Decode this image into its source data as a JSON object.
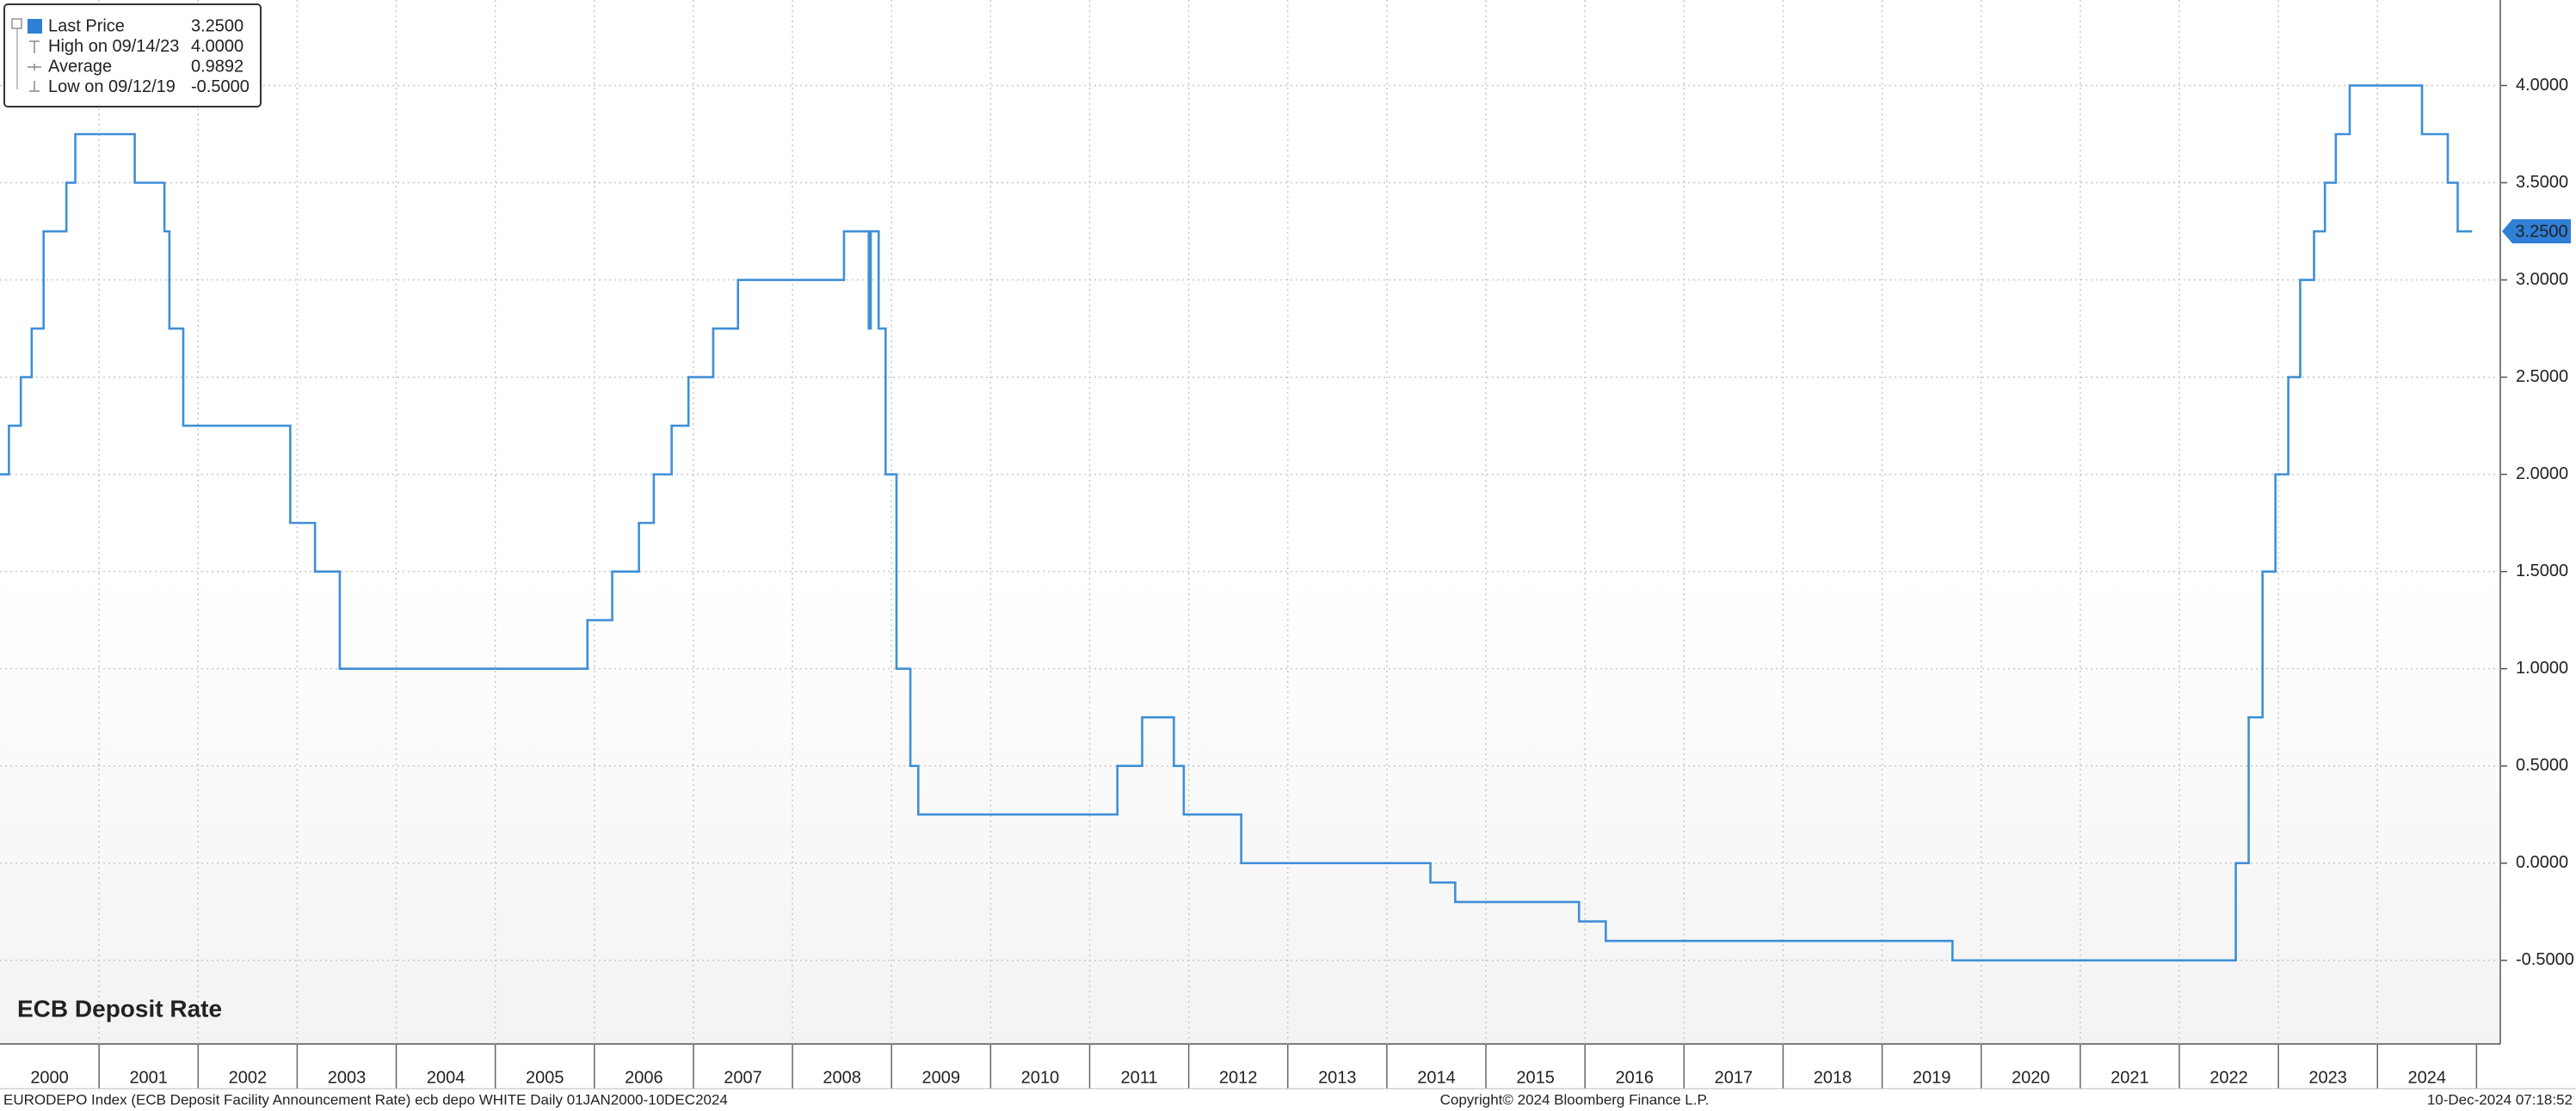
{
  "chart_data": {
    "type": "step-line",
    "title": "ECB Deposit Rate",
    "x": [
      2000.0,
      2000.09,
      2000.21,
      2000.32,
      2000.44,
      2000.67,
      2000.76,
      2001.36,
      2001.66,
      2001.71,
      2001.85,
      2002.93,
      2003.18,
      2003.43,
      2005.93,
      2006.18,
      2006.45,
      2006.6,
      2006.78,
      2006.95,
      2007.2,
      2007.45,
      2008.52,
      2008.77,
      2008.79,
      2008.87,
      2008.94,
      2009.05,
      2009.19,
      2009.27,
      2011.28,
      2011.53,
      2011.85,
      2011.95,
      2012.53,
      2014.44,
      2014.69,
      2015.94,
      2016.21,
      2019.71,
      2022.57,
      2022.7,
      2022.84,
      2022.97,
      2023.1,
      2023.22,
      2023.36,
      2023.47,
      2023.58,
      2023.72,
      2024.45,
      2024.71,
      2024.81,
      2024.94
    ],
    "series": [
      {
        "name": "Last Price",
        "color": "#3f8fd8",
        "values": [
          2.0,
          2.25,
          2.5,
          2.75,
          3.25,
          3.5,
          3.75,
          3.5,
          3.25,
          2.75,
          2.25,
          1.75,
          1.5,
          1.0,
          1.25,
          1.5,
          1.75,
          2.0,
          2.25,
          2.5,
          2.75,
          3.0,
          3.25,
          2.75,
          3.25,
          2.75,
          2.0,
          1.0,
          0.5,
          0.25,
          0.5,
          0.75,
          0.5,
          0.25,
          0.0,
          -0.1,
          -0.2,
          -0.3,
          -0.4,
          -0.5,
          0.0,
          0.75,
          1.5,
          2.0,
          2.5,
          3.0,
          3.25,
          3.5,
          3.75,
          4.0,
          3.75,
          3.5,
          3.25,
          3.25
        ]
      }
    ],
    "last_label": "3.2500",
    "xlim": [
      2000.0,
      2025.24
    ],
    "xticks": [
      2000,
      2001,
      2002,
      2003,
      2004,
      2005,
      2006,
      2007,
      2008,
      2009,
      2010,
      2011,
      2012,
      2013,
      2014,
      2015,
      2016,
      2017,
      2018,
      2019,
      2020,
      2021,
      2022,
      2023,
      2024
    ],
    "ylim": [
      -0.93,
      4.44
    ],
    "yticks": [
      {
        "value": -0.5,
        "label": "-0.5000"
      },
      {
        "value": 0,
        "label": "0.0000"
      },
      {
        "value": 0.5,
        "label": "0.5000"
      },
      {
        "value": 1,
        "label": "1.0000"
      },
      {
        "value": 1.5,
        "label": "1.5000"
      },
      {
        "value": 2,
        "label": "2.0000"
      },
      {
        "value": 2.5,
        "label": "2.5000"
      },
      {
        "value": 3,
        "label": "3.0000"
      },
      {
        "value": 3.5,
        "label": "3.5000"
      },
      {
        "value": 4,
        "label": "4.0000"
      }
    ],
    "grid": true,
    "legend_stats": [
      {
        "label": "Last Price",
        "value": "3.2500"
      },
      {
        "label": "High on 09/14/23",
        "value": "4.0000"
      },
      {
        "label": "Average",
        "value": "0.9892"
      },
      {
        "label": "Low on 09/12/19",
        "value": "-0.5000"
      }
    ]
  },
  "footer": {
    "left": "EURODEPO Index (ECB Deposit Facility Announcement Rate) ecb depo WHITE  Daily 01JAN2000-10DEC2024",
    "center": "Copyright© 2024 Bloomberg Finance L.P.",
    "right": "10-Dec-2024 07:18:52"
  }
}
